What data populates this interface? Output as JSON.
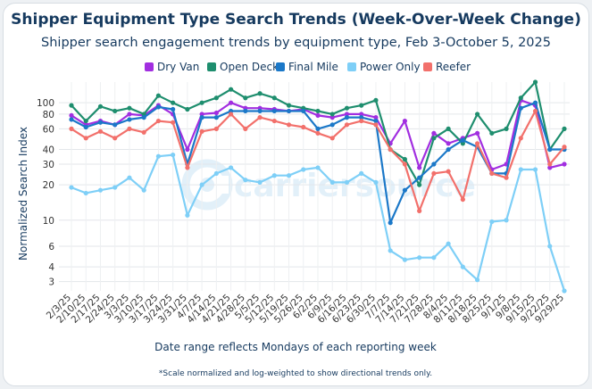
{
  "chart_data": {
    "type": "line",
    "title": "Shipper Equipment Type Search Trends (Week-Over-Week Change)",
    "subtitle": "Shipper search engagement trends by equipment type, Feb 3-October 5, 2025",
    "xlabel": "Date range reflects Mondays of each reporting week",
    "ylabel": "Normalized Search Index",
    "yscale": "log",
    "ylim": [
      2.5,
      150
    ],
    "yticks": [
      3,
      4,
      6,
      10,
      20,
      30,
      40,
      60,
      80,
      100
    ],
    "footnote": "*Scale normalized and log-weighted to show directional trends only.",
    "watermark": "carriersource",
    "legend_position": "top",
    "grid": true,
    "categories": [
      "2/3/25",
      "2/10/25",
      "2/17/25",
      "2/24/25",
      "3/3/25",
      "3/10/25",
      "3/17/25",
      "3/24/25",
      "3/31/25",
      "4/7/25",
      "4/14/25",
      "4/21/25",
      "4/28/25",
      "5/5/25",
      "5/12/25",
      "5/19/25",
      "5/26/25",
      "6/2/25",
      "6/9/25",
      "6/16/25",
      "6/23/25",
      "6/30/25",
      "7/7/25",
      "7/14/25",
      "7/21/25",
      "7/28/25",
      "8/4/25",
      "8/11/25",
      "8/18/25",
      "8/25/25",
      "9/1/25",
      "9/8/25",
      "9/15/25",
      "9/22/25",
      "9/29/25"
    ],
    "series": [
      {
        "name": "Dry Van",
        "color": "#a12ee0",
        "values": [
          78,
          65,
          70,
          65,
          80,
          78,
          95,
          80,
          40,
          80,
          82,
          100,
          90,
          90,
          88,
          85,
          88,
          78,
          75,
          80,
          80,
          75,
          45,
          70,
          28,
          55,
          45,
          50,
          55,
          27,
          30,
          105,
          95,
          28,
          30
        ]
      },
      {
        "name": "Open Deck",
        "color": "#1e8e6e",
        "values": [
          95,
          70,
          93,
          85,
          90,
          80,
          115,
          100,
          88,
          100,
          110,
          130,
          110,
          120,
          110,
          95,
          90,
          85,
          80,
          90,
          95,
          105,
          40,
          33,
          20,
          50,
          60,
          45,
          80,
          55,
          60,
          110,
          150,
          40,
          60
        ]
      },
      {
        "name": "Final Mile",
        "color": "#1b78c8",
        "values": [
          72,
          62,
          68,
          65,
          72,
          75,
          92,
          88,
          30,
          75,
          75,
          85,
          85,
          85,
          85,
          85,
          85,
          60,
          65,
          75,
          75,
          70,
          9.5,
          18,
          23,
          30,
          40,
          48,
          42,
          25,
          25,
          90,
          100,
          40,
          40
        ]
      },
      {
        "name": "Power Only",
        "color": "#7ecff7",
        "values": [
          19,
          17,
          18,
          19,
          23,
          18,
          35,
          36,
          11,
          20,
          25,
          28,
          22,
          21,
          24,
          24,
          27,
          28,
          21,
          21,
          25,
          21,
          5.5,
          4.6,
          4.8,
          4.8,
          6.3,
          4,
          3.1,
          9.7,
          10,
          27,
          27,
          6,
          2.5
        ]
      },
      {
        "name": "Reefer",
        "color": "#f2706b",
        "values": [
          60,
          50,
          57,
          50,
          60,
          56,
          70,
          68,
          28,
          57,
          60,
          80,
          60,
          75,
          70,
          65,
          62,
          55,
          50,
          65,
          70,
          65,
          40,
          30,
          12,
          25,
          26,
          15,
          45,
          25,
          23,
          50,
          85,
          30,
          42
        ]
      }
    ]
  }
}
